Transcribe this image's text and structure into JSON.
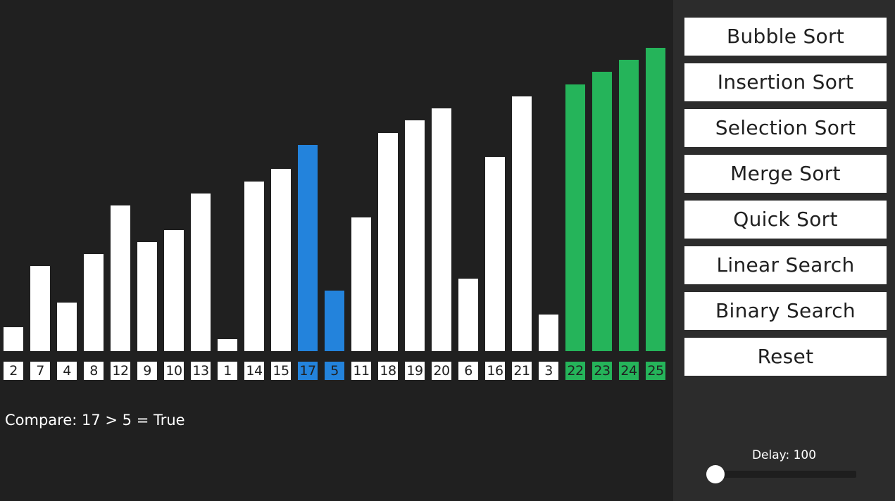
{
  "colors": {
    "default": "#ffffff",
    "compare": "#2383dc",
    "sorted": "#25b45a",
    "background": "#202020",
    "panel": "#2c2c2c"
  },
  "bars": [
    {
      "label": "2",
      "value": 2,
      "state": "default"
    },
    {
      "label": "7",
      "value": 7,
      "state": "default"
    },
    {
      "label": "4",
      "value": 4,
      "state": "default"
    },
    {
      "label": "8",
      "value": 8,
      "state": "default"
    },
    {
      "label": "12",
      "value": 12,
      "state": "default"
    },
    {
      "label": "9",
      "value": 9,
      "state": "default"
    },
    {
      "label": "10",
      "value": 10,
      "state": "default"
    },
    {
      "label": "13",
      "value": 13,
      "state": "default"
    },
    {
      "label": "1",
      "value": 1,
      "state": "default"
    },
    {
      "label": "14",
      "value": 14,
      "state": "default"
    },
    {
      "label": "15",
      "value": 15,
      "state": "default"
    },
    {
      "label": "17",
      "value": 17,
      "state": "compare"
    },
    {
      "label": "5",
      "value": 5,
      "state": "compare"
    },
    {
      "label": "11",
      "value": 11,
      "state": "default"
    },
    {
      "label": "18",
      "value": 18,
      "state": "default"
    },
    {
      "label": "19",
      "value": 19,
      "state": "default"
    },
    {
      "label": "20",
      "value": 20,
      "state": "default"
    },
    {
      "label": "6",
      "value": 6,
      "state": "default"
    },
    {
      "label": "16",
      "value": 16,
      "state": "default"
    },
    {
      "label": "21",
      "value": 21,
      "state": "default"
    },
    {
      "label": "3",
      "value": 3,
      "state": "default"
    },
    {
      "label": "22",
      "value": 22,
      "state": "sorted"
    },
    {
      "label": "23",
      "value": 23,
      "state": "sorted"
    },
    {
      "label": "24",
      "value": 24,
      "state": "sorted"
    },
    {
      "label": "25",
      "value": 25,
      "state": "sorted"
    }
  ],
  "status": {
    "text": "Compare: 17 > 5 = True"
  },
  "buttons": [
    {
      "name": "bubble-sort-button",
      "label": "Bubble Sort"
    },
    {
      "name": "insertion-sort-button",
      "label": "Insertion Sort"
    },
    {
      "name": "selection-sort-button",
      "label": "Selection Sort"
    },
    {
      "name": "merge-sort-button",
      "label": "Merge Sort"
    },
    {
      "name": "quick-sort-button",
      "label": "Quick Sort"
    },
    {
      "name": "linear-search-button",
      "label": "Linear Search"
    },
    {
      "name": "binary-search-button",
      "label": "Binary Search"
    },
    {
      "name": "reset-button",
      "label": "Reset"
    }
  ],
  "delay": {
    "label": "Delay: 100",
    "value": 100,
    "min": 100,
    "max": 1000
  }
}
